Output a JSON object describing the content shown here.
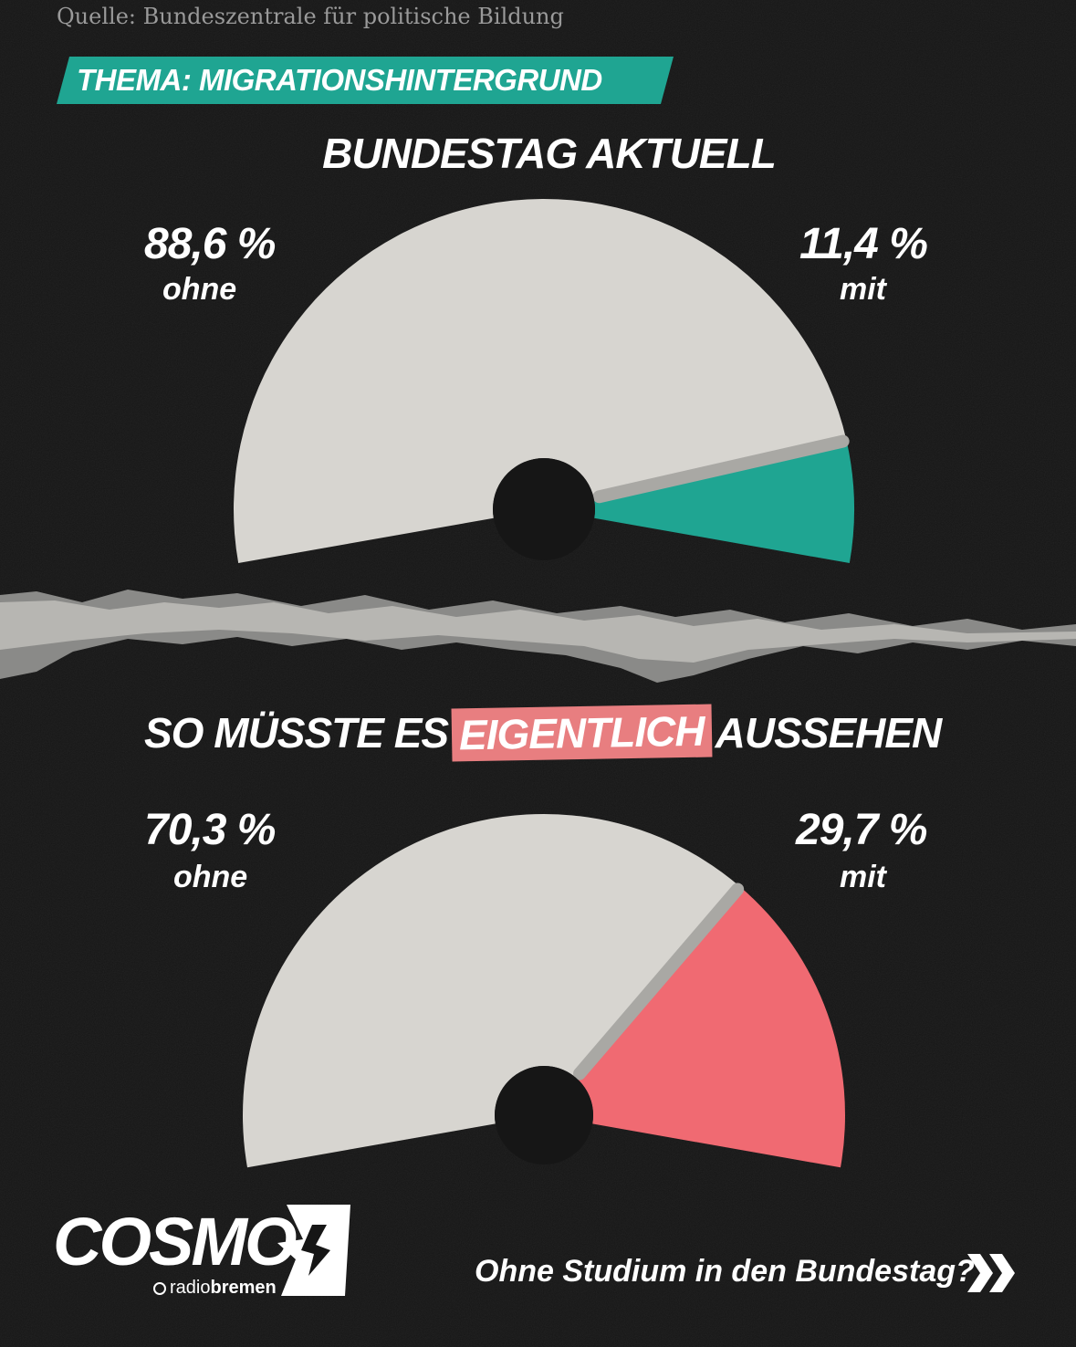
{
  "source": "Quelle: Bundeszentrale für politische Bildung",
  "topic_banner": "THEMA: MIGRATIONSHINTERGRUND",
  "colors": {
    "background": "#161616",
    "gauge_base": "#d7d5d0",
    "current_accent": "#1fa592",
    "target_accent": "#f06a72",
    "highlight": "#e87e80"
  },
  "chart_data": [
    {
      "type": "pie",
      "variant": "semi-donut gauge",
      "title": "BUNDESTAG AKTUELL",
      "slices": [
        {
          "label": "ohne",
          "value": 88.6,
          "value_text": "88,6 %"
        },
        {
          "label": "mit",
          "value": 11.4,
          "value_text": "11,4 %"
        }
      ]
    },
    {
      "type": "pie",
      "variant": "semi-donut gauge",
      "title_parts": {
        "before": "SO MÜSSTE ES",
        "highlight": "EIGENTLICH",
        "after": "AUSSEHEN"
      },
      "slices": [
        {
          "label": "ohne",
          "value": 70.3,
          "value_text": "70,3 %"
        },
        {
          "label": "mit",
          "value": 29.7,
          "value_text": "29,7 %"
        }
      ]
    }
  ],
  "footer": {
    "logo_text": "COSMO",
    "logo_mark": "cosmo-star-logo-icon",
    "partner_prefix": "radio",
    "partner_suffix": "bremen",
    "teaser": "Ohne Studium in den Bundestag?",
    "teaser_icon": "double-chevron-right-icon"
  }
}
